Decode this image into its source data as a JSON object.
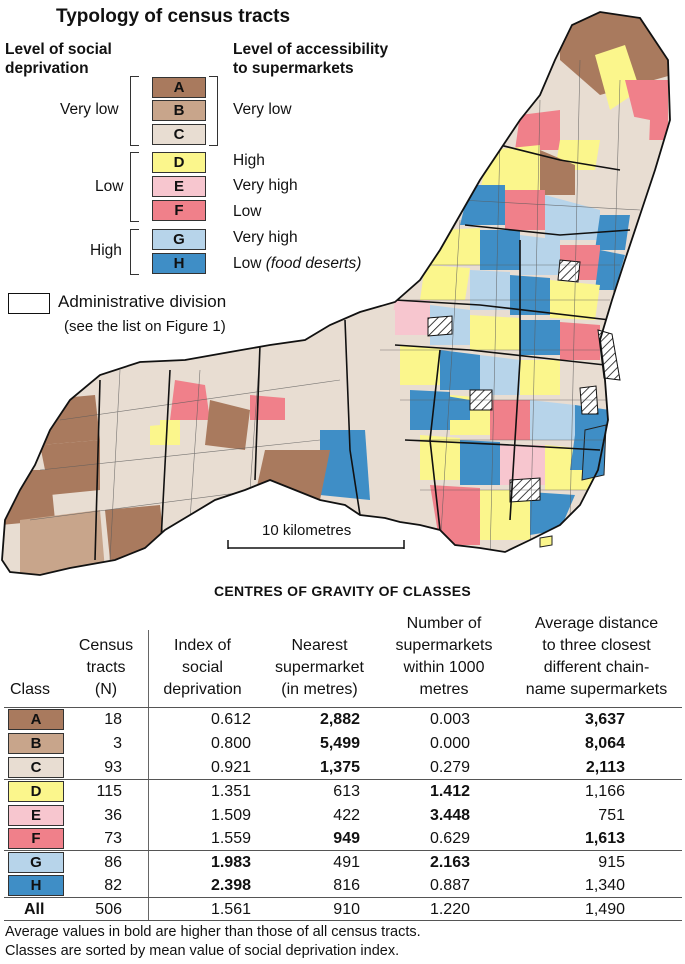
{
  "legend": {
    "title": "Typology of census tracts",
    "left_heading": [
      "Level of social",
      "deprivation"
    ],
    "right_heading": [
      "Level of accessibility",
      "to supermarkets"
    ],
    "groups": [
      {
        "deprivation": "Very low",
        "accessibility": "Very low"
      },
      {
        "deprivation": "Low",
        "accessibilities": [
          "High",
          "Very high",
          "Low"
        ]
      },
      {
        "deprivation": "High",
        "accessibilities": [
          "Very high",
          "Low"
        ],
        "food_deserts": "(food deserts)"
      }
    ],
    "classes": [
      {
        "letter": "A",
        "color": "#a97a5e"
      },
      {
        "letter": "B",
        "color": "#c8a58b"
      },
      {
        "letter": "C",
        "color": "#e8ddd2"
      },
      {
        "letter": "D",
        "color": "#fbf68c"
      },
      {
        "letter": "E",
        "color": "#f7c6cf"
      },
      {
        "letter": "F",
        "color": "#f0808a"
      },
      {
        "letter": "G",
        "color": "#b7d4ea"
      },
      {
        "letter": "H",
        "color": "#3f8ec6"
      }
    ],
    "admin_division": "Administrative division",
    "admin_note": "(see the list on Figure 1)"
  },
  "scale": {
    "label": "10 kilometres"
  },
  "table": {
    "title": "CENTRES OF GRAVITY OF CLASSES",
    "headers": {
      "class": "Class",
      "tracts": [
        "Census",
        "tracts",
        "(N)"
      ],
      "index": [
        "Index of",
        "social",
        "deprivation"
      ],
      "nearest": [
        "Nearest",
        "supermarket",
        "(in metres)"
      ],
      "number": [
        "Number of",
        "supermarkets",
        "within 1000",
        "metres"
      ],
      "avg": [
        "Average distance",
        "to three closest",
        "different chain-",
        "name supermarkets"
      ]
    },
    "rows": [
      {
        "cls": "A",
        "n": "18",
        "idx": "0.612",
        "near": "2,882",
        "num": "0.003",
        "avg": "3,637",
        "bold": [
          "near",
          "avg"
        ]
      },
      {
        "cls": "B",
        "n": "3",
        "idx": "0.800",
        "near": "5,499",
        "num": "0.000",
        "avg": "8,064",
        "bold": [
          "near",
          "avg"
        ]
      },
      {
        "cls": "C",
        "n": "93",
        "idx": "0.921",
        "near": "1,375",
        "num": "0.279",
        "avg": "2,113",
        "bold": [
          "near",
          "avg"
        ]
      },
      {
        "cls": "D",
        "n": "115",
        "idx": "1.351",
        "near": "613",
        "num": "1.412",
        "avg": "1,166",
        "bold": [
          "num"
        ]
      },
      {
        "cls": "E",
        "n": "36",
        "idx": "1.509",
        "near": "422",
        "num": "3.448",
        "avg": "751",
        "bold": [
          "num"
        ]
      },
      {
        "cls": "F",
        "n": "73",
        "idx": "1.559",
        "near": "949",
        "num": "0.629",
        "avg": "1,613",
        "bold": [
          "near",
          "avg"
        ]
      },
      {
        "cls": "G",
        "n": "86",
        "idx": "1.983",
        "near": "491",
        "num": "2.163",
        "avg": "915",
        "bold": [
          "idx",
          "num"
        ]
      },
      {
        "cls": "H",
        "n": "82",
        "idx": "2.398",
        "near": "816",
        "num": "0.887",
        "avg": "1,340",
        "bold": [
          "idx"
        ]
      },
      {
        "cls": "All",
        "n": "506",
        "idx": "1.561",
        "near": "910",
        "num": "1.220",
        "avg": "1,490",
        "bold": []
      }
    ]
  },
  "notes": [
    "Average values in bold are higher than those of all census tracts.",
    "Classes are sorted by mean value of social deprivation index."
  ]
}
